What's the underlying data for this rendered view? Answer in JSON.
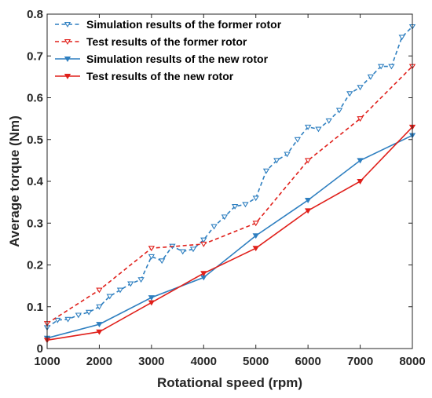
{
  "chart_data": {
    "type": "line",
    "xlabel": "Rotational speed (rpm)",
    "ylabel": "Average torque (Nm)",
    "xlim": [
      1000,
      8000
    ],
    "ylim": [
      0,
      0.8
    ],
    "xticks": [
      1000,
      2000,
      3000,
      4000,
      5000,
      6000,
      7000,
      8000
    ],
    "yticks": [
      0,
      0.1,
      0.2,
      0.3,
      0.4,
      0.5,
      0.6,
      0.7,
      0.8
    ],
    "xtick_labels": [
      "1000",
      "2000",
      "3000",
      "4000",
      "5000",
      "6000",
      "7000",
      "8000"
    ],
    "ytick_labels": [
      "0",
      "0.1",
      "0.2",
      "0.3",
      "0.4",
      "0.5",
      "0.6",
      "0.7",
      "0.8"
    ],
    "grid": false,
    "legend_position": "top-left",
    "series": [
      {
        "name": "Simulation results of the former rotor",
        "color": "#2e7fc0",
        "line_style": "dashed",
        "marker": "triangle-down-open",
        "x": [
          1000,
          1200,
          1400,
          1600,
          1800,
          2000,
          2200,
          2400,
          2600,
          2800,
          3000,
          3200,
          3400,
          3600,
          3800,
          4000,
          4200,
          4400,
          4600,
          4800,
          5000,
          5200,
          5400,
          5600,
          5800,
          6000,
          6200,
          6400,
          6600,
          6800,
          7000,
          7200,
          7400,
          7600,
          7800,
          8000
        ],
        "y": [
          0.05,
          0.068,
          0.07,
          0.08,
          0.087,
          0.1,
          0.125,
          0.14,
          0.155,
          0.165,
          0.22,
          0.21,
          0.245,
          0.232,
          0.238,
          0.26,
          0.292,
          0.315,
          0.34,
          0.345,
          0.36,
          0.425,
          0.45,
          0.465,
          0.5,
          0.53,
          0.525,
          0.545,
          0.57,
          0.61,
          0.625,
          0.65,
          0.675,
          0.675,
          0.745,
          0.77
        ]
      },
      {
        "name": "Test results of the former rotor",
        "color": "#e0201b",
        "line_style": "dashed",
        "marker": "triangle-down-open",
        "x": [
          1000,
          2000,
          3000,
          4000,
          5000,
          6000,
          7000,
          8000
        ],
        "y": [
          0.06,
          0.14,
          0.24,
          0.25,
          0.3,
          0.45,
          0.55,
          0.675
        ]
      },
      {
        "name": "Simulation results of the new rotor",
        "color": "#2e7fc0",
        "line_style": "solid",
        "marker": "triangle-down-filled",
        "x": [
          1000,
          2000,
          3000,
          4000,
          5000,
          6000,
          7000,
          8000
        ],
        "y": [
          0.025,
          0.058,
          0.122,
          0.17,
          0.27,
          0.355,
          0.45,
          0.51
        ]
      },
      {
        "name": "Test results of the new rotor",
        "color": "#e0201b",
        "line_style": "solid",
        "marker": "triangle-down-filled",
        "x": [
          1000,
          2000,
          3000,
          4000,
          5000,
          6000,
          7000,
          8000
        ],
        "y": [
          0.02,
          0.04,
          0.11,
          0.18,
          0.24,
          0.33,
          0.4,
          0.53
        ]
      }
    ],
    "overlap_color": "#8b4513"
  }
}
